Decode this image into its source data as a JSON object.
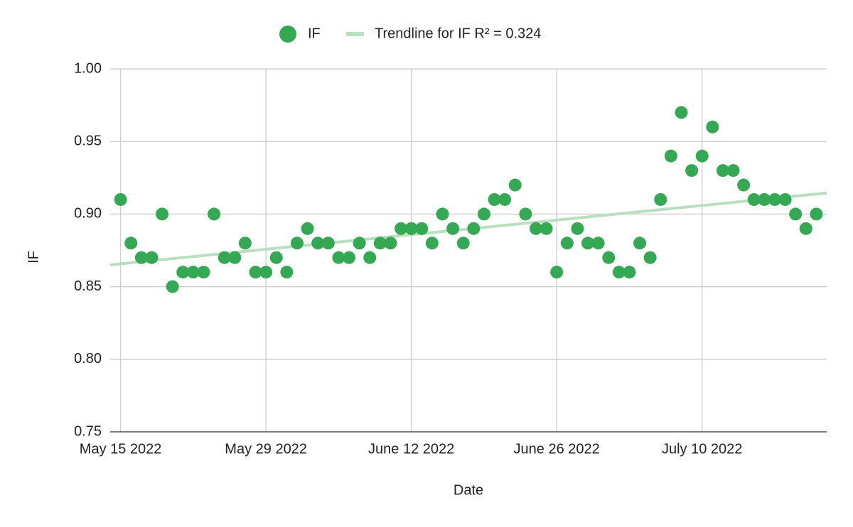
{
  "chart_data": {
    "type": "scatter",
    "x_label": "Date",
    "y_label": "IF",
    "x": [
      "2022-05-15",
      "2022-05-16",
      "2022-05-17",
      "2022-05-18",
      "2022-05-19",
      "2022-05-20",
      "2022-05-21",
      "2022-05-22",
      "2022-05-23",
      "2022-05-24",
      "2022-05-25",
      "2022-05-26",
      "2022-05-27",
      "2022-05-28",
      "2022-05-29",
      "2022-05-30",
      "2022-05-31",
      "2022-06-01",
      "2022-06-02",
      "2022-06-03",
      "2022-06-04",
      "2022-06-05",
      "2022-06-06",
      "2022-06-07",
      "2022-06-08",
      "2022-06-09",
      "2022-06-10",
      "2022-06-11",
      "2022-06-12",
      "2022-06-13",
      "2022-06-14",
      "2022-06-15",
      "2022-06-16",
      "2022-06-17",
      "2022-06-18",
      "2022-06-19",
      "2022-06-20",
      "2022-06-21",
      "2022-06-22",
      "2022-06-23",
      "2022-06-24",
      "2022-06-25",
      "2022-06-26",
      "2022-06-27",
      "2022-06-28",
      "2022-06-29",
      "2022-06-30",
      "2022-07-01",
      "2022-07-02",
      "2022-07-03",
      "2022-07-04",
      "2022-07-05",
      "2022-07-06",
      "2022-07-07",
      "2022-07-08",
      "2022-07-09",
      "2022-07-10",
      "2022-07-11",
      "2022-07-12",
      "2022-07-13",
      "2022-07-14",
      "2022-07-15",
      "2022-07-16",
      "2022-07-17",
      "2022-07-18",
      "2022-07-19",
      "2022-07-20",
      "2022-07-21"
    ],
    "series": [
      {
        "name": "IF",
        "color": "#34a853",
        "values": [
          0.91,
          0.88,
          0.87,
          0.87,
          0.9,
          0.85,
          0.86,
          0.86,
          0.86,
          0.9,
          0.87,
          0.87,
          0.88,
          0.86,
          0.86,
          0.87,
          0.86,
          0.88,
          0.89,
          0.88,
          0.88,
          0.87,
          0.87,
          0.88,
          0.87,
          0.88,
          0.88,
          0.89,
          0.89,
          0.89,
          0.88,
          0.9,
          0.89,
          0.88,
          0.89,
          0.9,
          0.91,
          0.91,
          0.92,
          0.9,
          0.89,
          0.89,
          0.86,
          0.88,
          0.89,
          0.88,
          0.88,
          0.87,
          0.86,
          0.86,
          0.88,
          0.87,
          0.91,
          0.94,
          0.97,
          0.93,
          0.94,
          0.96,
          0.93,
          0.93,
          0.92,
          0.91,
          0.91,
          0.91,
          0.91,
          0.9,
          0.89,
          0.9
        ]
      },
      {
        "name": "Trendline for IF R² = 0.324",
        "color": "#b7dfc0",
        "x": [
          "2022-05-14",
          "2022-07-22"
        ],
        "values": [
          0.865,
          0.9145
        ]
      }
    ],
    "xlim": [
      "2022-05-14",
      "2022-07-22"
    ],
    "xticks": [
      {
        "value": "2022-05-15",
        "label": "May 15 2022"
      },
      {
        "value": "2022-05-29",
        "label": "May 29 2022"
      },
      {
        "value": "2022-06-12",
        "label": "June 12 2022"
      },
      {
        "value": "2022-06-26",
        "label": "June 26 2022"
      },
      {
        "value": "2022-07-10",
        "label": "July 10 2022"
      }
    ],
    "ylim": [
      0.75,
      1.0
    ],
    "yticks": [
      {
        "value": 0.75,
        "label": "0.75"
      },
      {
        "value": 0.8,
        "label": "0.80"
      },
      {
        "value": 0.85,
        "label": "0.85"
      },
      {
        "value": 0.9,
        "label": "0.90"
      },
      {
        "value": 0.95,
        "label": "0.95"
      },
      {
        "value": 1.0,
        "label": "1.00"
      }
    ],
    "grid": true,
    "legend": "top"
  }
}
